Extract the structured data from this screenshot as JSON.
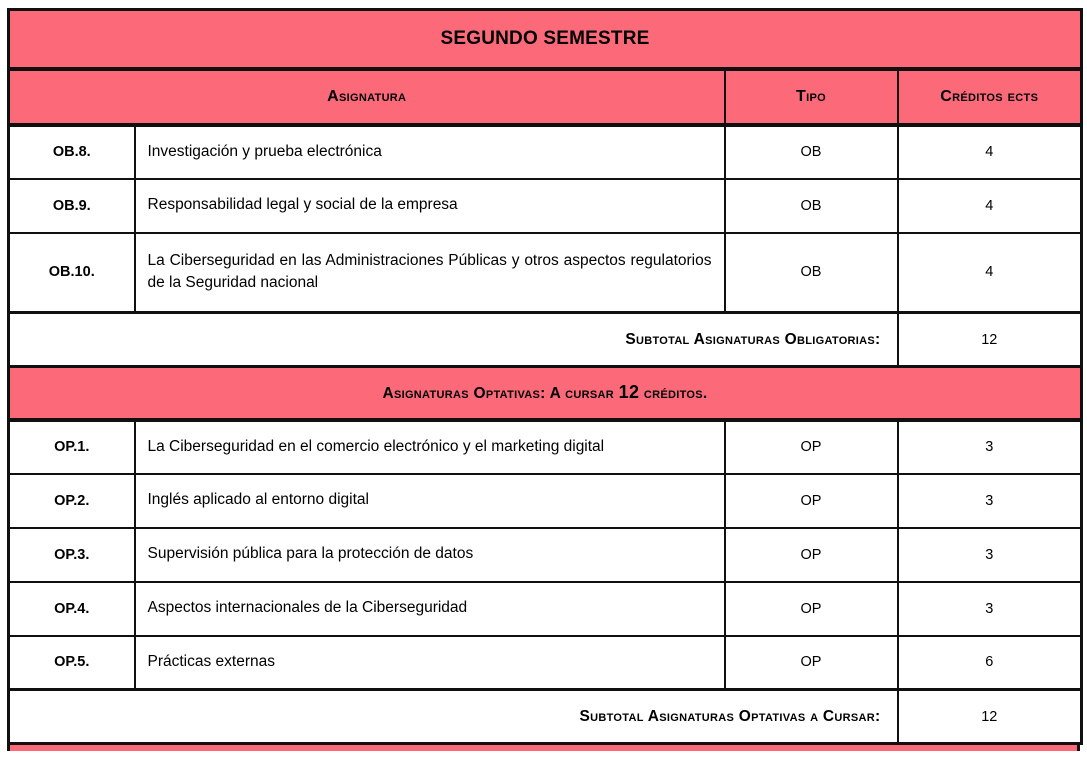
{
  "title": "SEGUNDO SEMESTRE",
  "columns": {
    "asignatura": "Asignatura",
    "tipo": "Tipo",
    "creditos": "Créditos ects"
  },
  "obligatorias": {
    "rows": [
      {
        "code": "OB.8.",
        "name": "Investigación y prueba electrónica",
        "type": "OB",
        "credits": "4"
      },
      {
        "code": "OB.9.",
        "name": "Responsabilidad legal y social de la empresa",
        "type": "OB",
        "credits": "4"
      },
      {
        "code": "OB.10.",
        "name": "La Ciberseguridad en las Administraciones Públicas y otros aspectos regulatorios de la Seguridad nacional",
        "type": "OB",
        "credits": "4"
      }
    ],
    "subtotal_label": "Subtotal Asignaturas Obligatorias:",
    "subtotal_value": "12"
  },
  "optativas": {
    "header_prefix": "Asignaturas Optativas: A cursar ",
    "header_number": "12",
    "header_suffix": " créditos.",
    "rows": [
      {
        "code": "OP.1.",
        "name": "La Ciberseguridad en el comercio electrónico y el marketing digital",
        "type": "OP",
        "credits": "3"
      },
      {
        "code": "OP.2.",
        "name": "Inglés aplicado al entorno digital",
        "type": "OP",
        "credits": "3"
      },
      {
        "code": "OP.3.",
        "name": "Supervisión pública para la protección de datos",
        "type": "OP",
        "credits": "3"
      },
      {
        "code": "OP.4.",
        "name": "Aspectos internacionales de la Ciberseguridad",
        "type": "OP",
        "credits": "3"
      },
      {
        "code": "OP.5.",
        "name": "Prácticas externas",
        "type": "OP",
        "credits": "6"
      }
    ],
    "subtotal_label": "Subtotal Asignaturas Optativas a Cursar:",
    "subtotal_value": "12"
  },
  "colors": {
    "accent_pink": "#FC6A7A",
    "border_black": "#101010",
    "text": "#000000"
  }
}
